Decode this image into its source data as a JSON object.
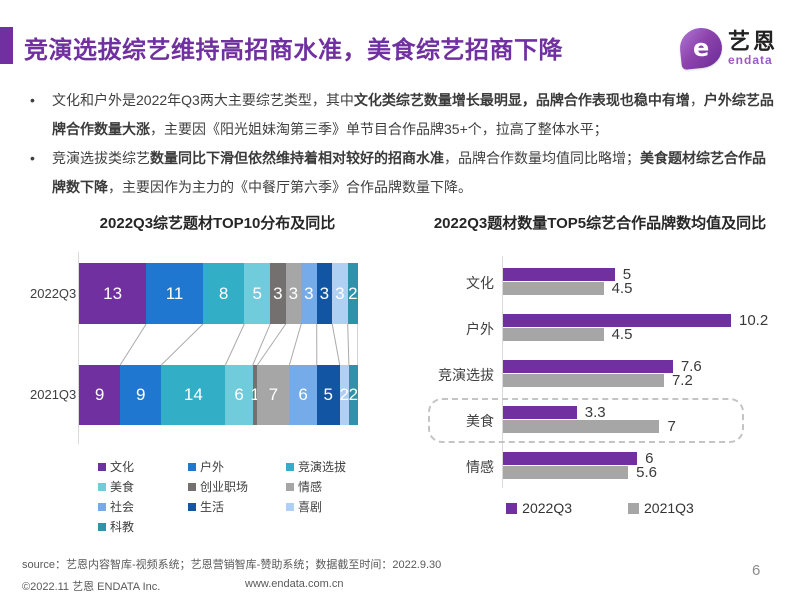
{
  "header": {
    "title": "竞演选拔综艺维持高招商水准，美食综艺招商下降",
    "accent_color": "#7030A0",
    "logo": {
      "letter": "e",
      "cn": "艺恩",
      "en": "endata"
    }
  },
  "bullets": [
    {
      "marker": "•",
      "segments": [
        {
          "text": "文化和户外是2022年Q3两大主要综艺类型，其中",
          "bold": false
        },
        {
          "text": "文化类综艺数量增长最明显，品牌合作表现也稳中有增",
          "bold": true
        },
        {
          "text": "，",
          "bold": false
        },
        {
          "text": "户外综艺品牌合作数量大涨",
          "bold": true
        },
        {
          "text": "，主要因《阳光姐妹淘第三季》单节目合作品牌35+个，拉高了整体水平；",
          "bold": false
        }
      ]
    },
    {
      "marker": "•",
      "segments": [
        {
          "text": "竞演选拔类综艺",
          "bold": false
        },
        {
          "text": "数量同比下滑但依然维持着相对较好的招商水准",
          "bold": true
        },
        {
          "text": "，品牌合作数量均值同比略增；",
          "bold": false
        },
        {
          "text": "美食题材综艺合作品牌数下降",
          "bold": true
        },
        {
          "text": "，主要因作为主力的《中餐厅第六季》合作品牌数量下降。",
          "bold": false
        }
      ]
    }
  ],
  "chart_data": [
    {
      "type": "bar",
      "subtype": "stacked-100-horizontal",
      "title": "2022Q3综艺题材TOP10分布及同比",
      "categories": [
        "文化",
        "户外",
        "竞演选拔",
        "美食",
        "创业职场",
        "情感",
        "社会",
        "生活",
        "喜剧",
        "科教"
      ],
      "colors": [
        "#7030A0",
        "#2077D0",
        "#32AFC6",
        "#70CBDB",
        "#757070",
        "#A6A6A6",
        "#74ABE8",
        "#1155A3",
        "#AFD0F2",
        "#2E93A8"
      ],
      "rows": [
        {
          "label": "2022Q3",
          "values": [
            13,
            11,
            8,
            5,
            3,
            3,
            3,
            3,
            3,
            2
          ]
        },
        {
          "label": "2021Q3",
          "values": [
            9,
            9,
            14,
            6,
            1,
            7,
            6,
            5,
            2,
            2
          ]
        }
      ],
      "legend_position": "bottom",
      "connector_color": "#ababab"
    },
    {
      "type": "bar",
      "subtype": "grouped-horizontal",
      "title": "2022Q3题材数量TOP5综艺合作品牌数均值及同比",
      "categories": [
        "文化",
        "户外",
        "竞演选拔",
        "美食",
        "情感"
      ],
      "series": [
        {
          "name": "2022Q3",
          "color": "#7030A0",
          "values": [
            5,
            10.2,
            7.6,
            3.3,
            6
          ]
        },
        {
          "name": "2021Q3",
          "color": "#A6A6A6",
          "values": [
            4.5,
            4.5,
            7.2,
            7,
            5.6
          ]
        }
      ],
      "value_labels": [
        [
          "5",
          "4.5"
        ],
        [
          "10.2",
          "4.5"
        ],
        [
          "7.6",
          "7.2"
        ],
        [
          "3.3",
          "7"
        ],
        [
          "6",
          "5.6"
        ]
      ],
      "xlim": [
        0,
        10.2
      ],
      "highlighted_category": "美食",
      "legend_position": "bottom"
    }
  ],
  "footer": {
    "source": "source：艺恩内容智库-视频系统；艺恩营销智库-赞助系统；数据截至时间：2022.9.30",
    "copyright": "©2022.11 艺恩 ENDATA Inc.",
    "website": "www.endata.com.cn",
    "page_number": "6"
  }
}
